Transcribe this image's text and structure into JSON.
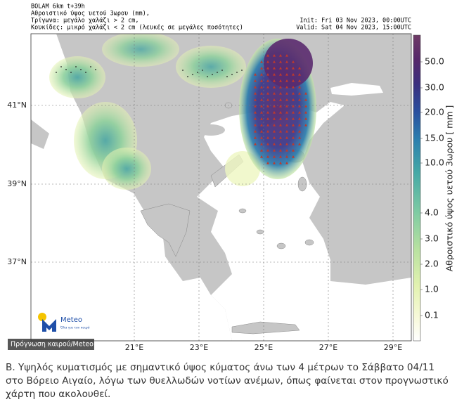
{
  "header": {
    "lines": [
      "BOLAM 6km t+39h",
      "Αθροιστικό ύψος υετού 3ωρου (mm),",
      "Τρίγωνα: μεγάλο χαλάζι > 2 cm,",
      "Κουκίδες: μικρό χαλάζι < 2 cm (λευκές σε μεγάλες ποσότητες)"
    ],
    "init": "Init: Fri 03 Nov 2023, 00:00UTC",
    "valid": "Valid: Sat 04 Nov 2023, 15:00UTC"
  },
  "map": {
    "lat_labels": [
      "41°N",
      "39°N",
      "37°N"
    ],
    "lon_labels": [
      "21°E",
      "23°E",
      "25°E",
      "27°E",
      "29°E"
    ]
  },
  "colorbar": {
    "label": "Αθροιστικό ύψος υετού 3ωρου [ mm ]",
    "ticks": [
      "50.0",
      "30.0",
      "20.0",
      "15.0",
      "10.0",
      "4.0",
      "3.0",
      "2.0",
      "1.0",
      "0.1"
    ]
  },
  "logo": {
    "name": "Meteo",
    "tagline": "Όλα για τον καιρό"
  },
  "credit": "Πρόγνωση καιρού/Meteo",
  "caption": "Β. Υψηλός κυματισμός με σημαντικό ύψος κύματος άνω των 4 μέτρων το Σάββατο 04/11 στο Βόρειο Αιγαίο, λόγω των θυελλωδών νοτίων ανέμων, όπως φαίνεται στον προγνωστικό χάρτη που ακολουθεί."
}
